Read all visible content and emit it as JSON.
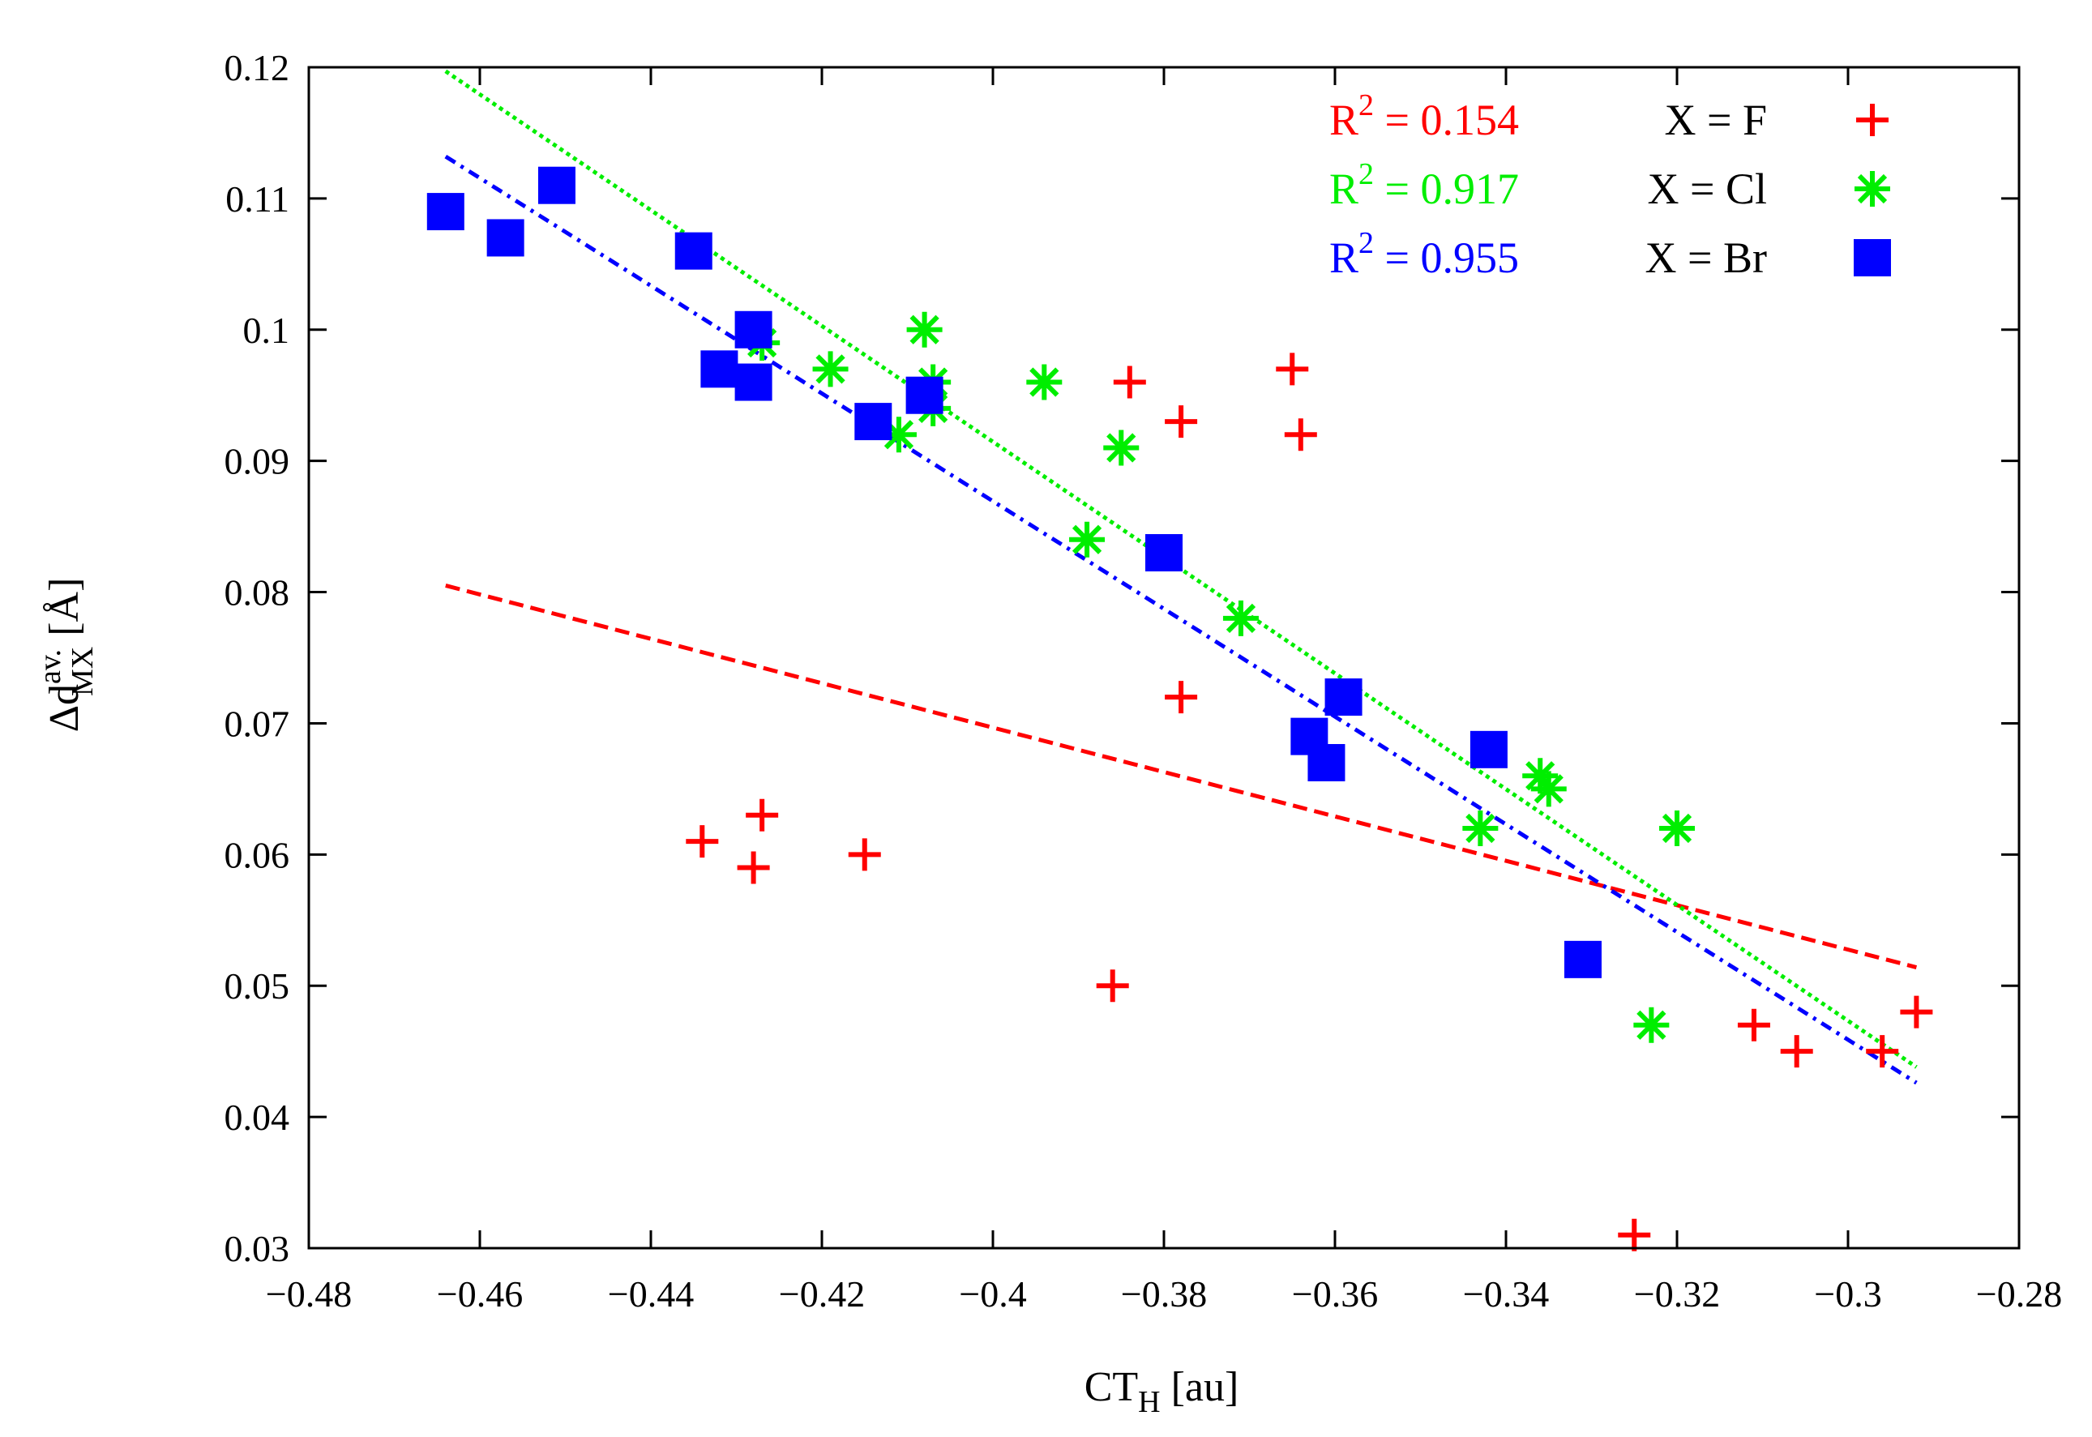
{
  "chart_data": {
    "type": "scatter",
    "xlabel": {
      "main": "CT",
      "sub": "H",
      "unit": " [au]"
    },
    "ylabel": {
      "main": "Δd",
      "sup": "av.",
      "sub": "MX",
      "unit": "  [Å]"
    },
    "xlim": [
      -0.48,
      -0.28
    ],
    "ylim": [
      0.03,
      0.12
    ],
    "xticks": [
      -0.48,
      -0.46,
      -0.44,
      -0.42,
      -0.4,
      -0.38,
      -0.36,
      -0.34,
      -0.32,
      -0.3,
      -0.28
    ],
    "xtick_labels": [
      "−0.48",
      "−0.46",
      "−0.44",
      "−0.42",
      "−0.4",
      "−0.38",
      "−0.36",
      "−0.34",
      "−0.32",
      "−0.3",
      "−0.28"
    ],
    "yticks": [
      0.03,
      0.04,
      0.05,
      0.06,
      0.07,
      0.08,
      0.09,
      0.1,
      0.11,
      0.12
    ],
    "ytick_labels": [
      "0.03",
      "0.04",
      "0.05",
      "0.06",
      "0.07",
      "0.08",
      "0.09",
      "0.1",
      "0.11",
      "0.12"
    ],
    "grid": false,
    "legend_position": "top-right",
    "series": [
      {
        "name": "X = F",
        "r2_label": "R",
        "r2_sup": "2",
        "r2_value": " = 0.154",
        "color": "#ff0000",
        "marker": "plus",
        "fit_style": "dashed",
        "fit": {
          "x0": -0.464,
          "y0": 0.0805,
          "x1": -0.292,
          "y1": 0.0514
        },
        "points": [
          [
            -0.434,
            0.061
          ],
          [
            -0.428,
            0.059
          ],
          [
            -0.427,
            0.063
          ],
          [
            -0.415,
            0.06
          ],
          [
            -0.386,
            0.05
          ],
          [
            -0.384,
            0.096
          ],
          [
            -0.378,
            0.093
          ],
          [
            -0.378,
            0.072
          ],
          [
            -0.365,
            0.097
          ],
          [
            -0.364,
            0.092
          ],
          [
            -0.325,
            0.031
          ],
          [
            -0.311,
            0.047
          ],
          [
            -0.306,
            0.045
          ],
          [
            -0.296,
            0.045
          ],
          [
            -0.292,
            0.048
          ]
        ]
      },
      {
        "name": "X = Cl",
        "r2_label": "R",
        "r2_sup": "2",
        "r2_value": " = 0.917",
        "color": "#00ee00",
        "marker": "star",
        "fit_style": "dotted",
        "fit": {
          "x0": -0.464,
          "y0": 0.1197,
          "x1": -0.292,
          "y1": 0.0438
        },
        "points": [
          [
            -0.427,
            0.099
          ],
          [
            -0.419,
            0.097
          ],
          [
            -0.411,
            0.092
          ],
          [
            -0.408,
            0.1
          ],
          [
            -0.407,
            0.096
          ],
          [
            -0.407,
            0.094
          ],
          [
            -0.394,
            0.096
          ],
          [
            -0.389,
            0.084
          ],
          [
            -0.385,
            0.091
          ],
          [
            -0.371,
            0.078
          ],
          [
            -0.343,
            0.062
          ],
          [
            -0.336,
            0.066
          ],
          [
            -0.335,
            0.065
          ],
          [
            -0.323,
            0.047
          ],
          [
            -0.32,
            0.062
          ]
        ]
      },
      {
        "name": "X = Br",
        "r2_label": "R",
        "r2_sup": "2",
        "r2_value": " = 0.955",
        "color": "#0000ff",
        "marker": "square",
        "fit_style": "dashdot",
        "fit": {
          "x0": -0.464,
          "y0": 0.1132,
          "x1": -0.292,
          "y1": 0.0426
        },
        "points": [
          [
            -0.464,
            0.109
          ],
          [
            -0.457,
            0.107
          ],
          [
            -0.451,
            0.111
          ],
          [
            -0.435,
            0.106
          ],
          [
            -0.432,
            0.097
          ],
          [
            -0.428,
            0.1
          ],
          [
            -0.428,
            0.096
          ],
          [
            -0.414,
            0.093
          ],
          [
            -0.408,
            0.095
          ],
          [
            -0.38,
            0.083
          ],
          [
            -0.363,
            0.069
          ],
          [
            -0.361,
            0.067
          ],
          [
            -0.359,
            0.072
          ],
          [
            -0.342,
            0.068
          ],
          [
            -0.331,
            0.052
          ]
        ]
      }
    ]
  }
}
